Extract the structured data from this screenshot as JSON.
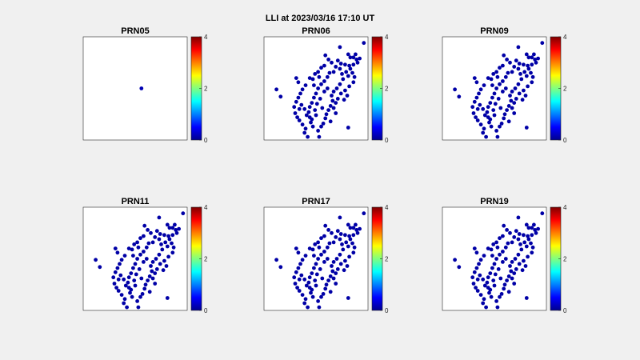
{
  "figure": {
    "title": "LLI at 2023/03/16 17:10 UT"
  },
  "chart_data": {
    "type": "scatter",
    "colormap": "jet",
    "clim": [
      0,
      4
    ],
    "colorbar_ticks": [
      "0",
      "2",
      "4"
    ],
    "grid": false,
    "panels": [
      {
        "title": "PRN05",
        "points": [
          [
            5.6,
            5.0,
            0.2
          ]
        ]
      },
      {
        "title": "PRN06",
        "points": []
      },
      {
        "title": "PRN09",
        "points": []
      },
      {
        "title": "PRN11",
        "points": []
      },
      {
        "title": "PRN17",
        "points": []
      },
      {
        "title": "PRN19",
        "points": []
      }
    ],
    "station_cloud": {
      "points": [
        [
          7.3,
          9.0
        ],
        [
          8.1,
          8.3
        ],
        [
          8.3,
          8.0
        ],
        [
          8.6,
          8.0
        ],
        [
          8.9,
          7.8
        ],
        [
          9.2,
          7.9
        ],
        [
          9.0,
          7.5
        ],
        [
          8.6,
          7.3
        ],
        [
          8.2,
          7.2
        ],
        [
          7.8,
          7.3
        ],
        [
          7.4,
          7.4
        ],
        [
          6.9,
          7.1
        ],
        [
          6.7,
          6.6
        ],
        [
          6.3,
          6.5
        ],
        [
          6.1,
          6.1
        ],
        [
          5.8,
          5.7
        ],
        [
          5.5,
          5.4
        ],
        [
          5.2,
          5.0
        ],
        [
          5.0,
          4.5
        ],
        [
          4.8,
          4.1
        ],
        [
          4.6,
          3.6
        ],
        [
          4.4,
          3.2
        ],
        [
          4.3,
          2.7
        ],
        [
          4.4,
          2.2
        ],
        [
          4.5,
          1.7
        ],
        [
          4.7,
          1.3
        ],
        [
          7.1,
          7.7
        ],
        [
          7.3,
          6.9
        ],
        [
          7.5,
          6.4
        ],
        [
          7.9,
          6.6
        ],
        [
          8.1,
          6.2
        ],
        [
          7.6,
          5.9
        ],
        [
          7.3,
          5.4
        ],
        [
          7.0,
          5.0
        ],
        [
          6.7,
          4.7
        ],
        [
          6.5,
          4.3
        ],
        [
          6.6,
          3.8
        ],
        [
          6.4,
          3.3
        ],
        [
          6.2,
          2.9
        ],
        [
          6.0,
          2.5
        ],
        [
          5.9,
          2.1
        ],
        [
          5.7,
          1.6
        ],
        [
          5.5,
          1.3
        ],
        [
          5.2,
          0.9
        ],
        [
          5.3,
          0.3
        ],
        [
          4.4,
          6.0
        ],
        [
          4.7,
          5.9
        ],
        [
          4.9,
          6.4
        ],
        [
          5.2,
          6.6
        ],
        [
          5.5,
          7.0
        ],
        [
          5.8,
          7.2
        ],
        [
          4.0,
          5.3
        ],
        [
          3.7,
          4.9
        ],
        [
          3.5,
          4.5
        ],
        [
          3.3,
          4.1
        ],
        [
          3.1,
          3.7
        ],
        [
          2.9,
          3.2
        ],
        [
          3.0,
          2.6
        ],
        [
          3.2,
          2.2
        ],
        [
          3.4,
          1.9
        ],
        [
          3.7,
          1.5
        ],
        [
          4.0,
          1.1
        ],
        [
          3.9,
          0.7
        ],
        [
          4.2,
          0.3
        ],
        [
          8.3,
          6.9
        ],
        [
          8.5,
          6.5
        ],
        [
          8.7,
          6.1
        ],
        [
          8.6,
          5.6
        ],
        [
          8.2,
          5.2
        ],
        [
          7.8,
          4.8
        ],
        [
          7.4,
          4.5
        ],
        [
          7.1,
          4.0
        ],
        [
          6.9,
          3.6
        ],
        [
          6.7,
          3.1
        ],
        [
          6.9,
          2.6
        ],
        [
          5.8,
          4.7
        ],
        [
          6.1,
          5.0
        ],
        [
          5.4,
          4.0
        ],
        [
          5.1,
          3.5
        ],
        [
          4.9,
          2.9
        ],
        [
          5.0,
          2.4
        ],
        [
          3.6,
          3.4
        ],
        [
          3.9,
          3.0
        ],
        [
          4.1,
          2.4
        ],
        [
          5.9,
          8.2
        ],
        [
          6.2,
          7.8
        ],
        [
          6.5,
          7.5
        ],
        [
          3.3,
          5.6
        ],
        [
          3.1,
          6.0
        ],
        [
          1.2,
          4.9
        ],
        [
          1.6,
          4.2
        ],
        [
          3.4,
          3.0
        ],
        [
          9.6,
          9.4
        ],
        [
          8.1,
          1.2
        ],
        [
          6.4,
          1.8
        ],
        [
          4.8,
          5.3
        ],
        [
          5.6,
          3.1
        ],
        [
          7.7,
          3.9
        ],
        [
          8.0,
          4.3
        ],
        [
          8.8,
          8.3
        ],
        [
          4.6,
          2.0
        ],
        [
          5.3,
          6.1
        ]
      ]
    }
  }
}
